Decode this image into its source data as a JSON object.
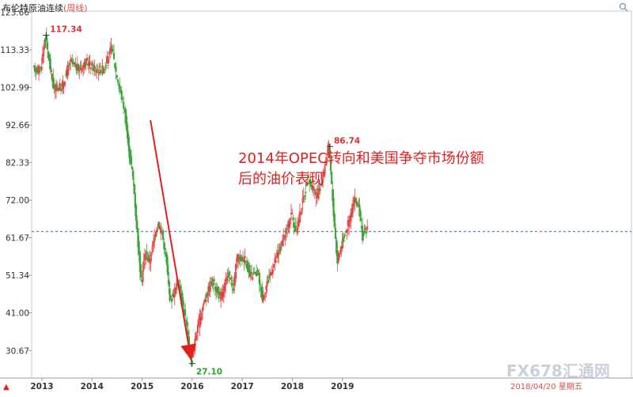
{
  "header": {
    "title": "布伦特原油连续",
    "period_label": "(周线)"
  },
  "annotation": {
    "line1": "2014年OPEC转向和美国争夺市场份额",
    "line2": "后的油价表现"
  },
  "footer": {
    "date_label": "2018/04/20 星期五",
    "watermark": "FX678汇通网",
    "up_marker": "▲"
  },
  "chart_data": {
    "type": "candlestick",
    "title": "布伦特原油连续",
    "period": "weekly",
    "y_ticks": [
      123.66,
      113.33,
      102.99,
      92.66,
      82.33,
      72.0,
      61.67,
      51.34,
      41.0,
      30.67
    ],
    "ylim": [
      25.0,
      123.66
    ],
    "x_ticks": [
      "2013",
      "2014",
      "2015",
      "2016",
      "2017",
      "2018",
      "2019"
    ],
    "reference_line": 63.4,
    "annotations": [
      {
        "label": "117.34",
        "date": "2013-02",
        "value": 117.34,
        "color": "#e03030"
      },
      {
        "label": "27.10",
        "date": "2016-01",
        "value": 27.1,
        "color": "#2fa12f"
      },
      {
        "label": "86.74",
        "date": "2018-10",
        "value": 86.74,
        "color": "#e03030"
      }
    ],
    "arrow": {
      "from": {
        "date": "2015-03",
        "value": 94.0
      },
      "to": {
        "date": "2016-01",
        "value": 27.1
      }
    },
    "path": [
      [
        "2013-01",
        108
      ],
      [
        "2013-02",
        117.3
      ],
      [
        "2013-04",
        103
      ],
      [
        "2013-06",
        103
      ],
      [
        "2013-08",
        110
      ],
      [
        "2013-10",
        108
      ],
      [
        "2013-12",
        110
      ],
      [
        "2014-02",
        108
      ],
      [
        "2014-04",
        108
      ],
      [
        "2014-06",
        114
      ],
      [
        "2014-07",
        107
      ],
      [
        "2014-09",
        97
      ],
      [
        "2014-10",
        86
      ],
      [
        "2014-11",
        79
      ],
      [
        "2014-12",
        64
      ],
      [
        "2015-01",
        49
      ],
      [
        "2015-02",
        58
      ],
      [
        "2015-03",
        55
      ],
      [
        "2015-05",
        66
      ],
      [
        "2015-06",
        63
      ],
      [
        "2015-07",
        56
      ],
      [
        "2015-08",
        44
      ],
      [
        "2015-10",
        50
      ],
      [
        "2015-12",
        37
      ],
      [
        "2016-01",
        27.1
      ],
      [
        "2016-02",
        34
      ],
      [
        "2016-04",
        44
      ],
      [
        "2016-06",
        50
      ],
      [
        "2016-08",
        45
      ],
      [
        "2016-10",
        52
      ],
      [
        "2016-11",
        47
      ],
      [
        "2016-12",
        56
      ],
      [
        "2017-02",
        56
      ],
      [
        "2017-03",
        51
      ],
      [
        "2017-05",
        52
      ],
      [
        "2017-06",
        45
      ],
      [
        "2017-08",
        52
      ],
      [
        "2017-10",
        58
      ],
      [
        "2017-12",
        64
      ],
      [
        "2018-01",
        69
      ],
      [
        "2018-02",
        63
      ],
      [
        "2018-04",
        73
      ],
      [
        "2018-05",
        78
      ],
      [
        "2018-07",
        73
      ],
      [
        "2018-08",
        76
      ],
      [
        "2018-10",
        86.7
      ],
      [
        "2018-11",
        70
      ],
      [
        "2018-12",
        55
      ],
      [
        "2019-01",
        60
      ],
      [
        "2019-03",
        67
      ],
      [
        "2019-04",
        72
      ],
      [
        "2019-05",
        71
      ],
      [
        "2019-06",
        62
      ],
      [
        "2019-07",
        64
      ]
    ]
  }
}
